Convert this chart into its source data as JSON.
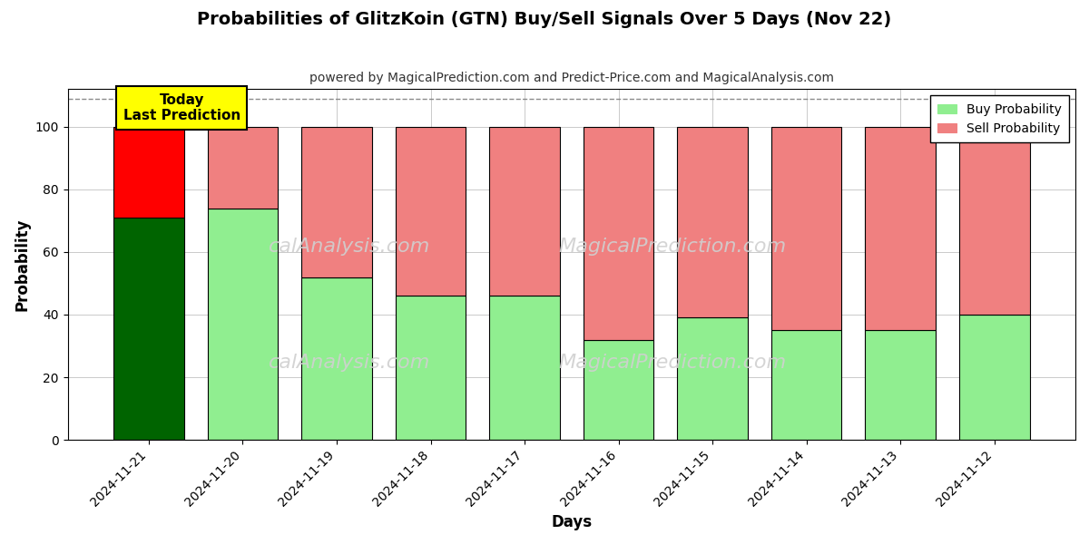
{
  "title": "Probabilities of GlitzKoin (GTN) Buy/Sell Signals Over 5 Days (Nov 22)",
  "subtitle": "powered by MagicalPrediction.com and Predict-Price.com and MagicalAnalysis.com",
  "xlabel": "Days",
  "ylabel": "Probability",
  "dates": [
    "2024-11-21",
    "2024-11-20",
    "2024-11-19",
    "2024-11-18",
    "2024-11-17",
    "2024-11-16",
    "2024-11-15",
    "2024-11-14",
    "2024-11-13",
    "2024-11-12"
  ],
  "buy_values": [
    71,
    74,
    52,
    46,
    46,
    32,
    39,
    35,
    35,
    40
  ],
  "sell_values": [
    29,
    26,
    48,
    54,
    54,
    68,
    61,
    65,
    65,
    60
  ],
  "today_buy_color": "#006400",
  "today_sell_color": "#FF0000",
  "buy_color": "#90EE90",
  "sell_color": "#F08080",
  "today_label_bg": "#FFFF00",
  "today_label_text": "Today\nLast Prediction",
  "legend_buy_label": "Buy Probability",
  "legend_sell_label": "Sell Probability",
  "ylim": [
    0,
    112
  ],
  "yticks": [
    0,
    20,
    40,
    60,
    80,
    100
  ],
  "dashed_line_y": 109,
  "bar_edgecolor": "#000000",
  "bar_linewidth": 0.8,
  "background_color": "#ffffff",
  "grid_color": "#999999",
  "watermark1": "calAnalysis.com",
  "watermark2": "MagicalPrediction.com",
  "watermark3": "calAnalysis.com",
  "watermark4": "MagicalPrediction.com"
}
